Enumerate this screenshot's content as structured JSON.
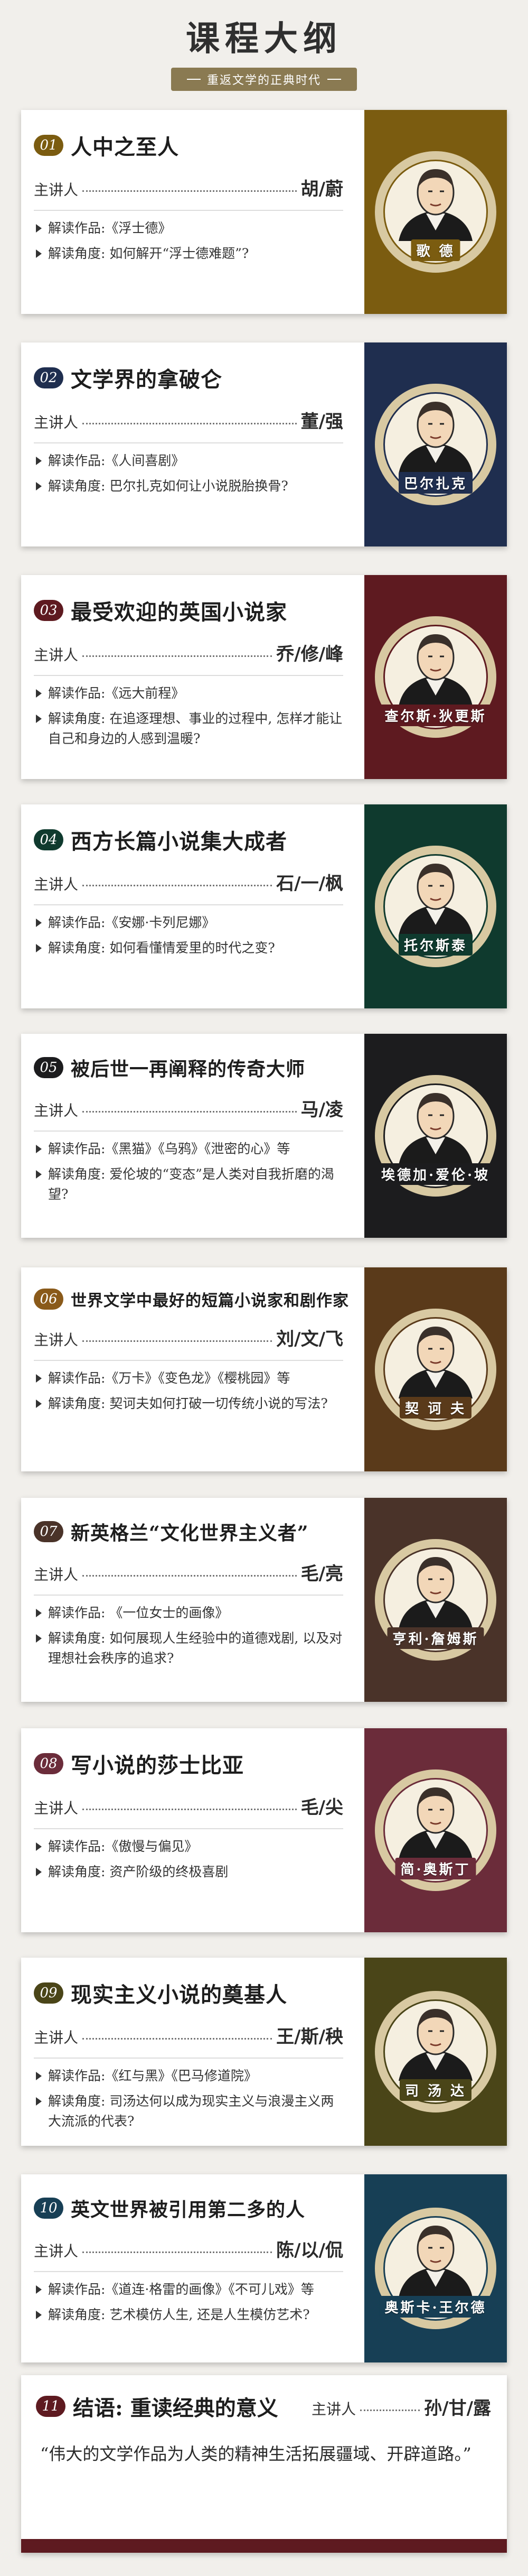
{
  "header": {
    "title": "课程大纲",
    "subtitle": "重返文学的正典时代"
  },
  "speaker_label": "主讲人",
  "cards": [
    {
      "num": "01",
      "title": "人中之至人",
      "speaker": "胡/蔚",
      "bullets": [
        "解读作品:《浮士德》",
        "解读角度: 如何解开“浮士德难题”?"
      ],
      "portrait": "歌 德",
      "color": "#7b5c10",
      "badge_color": "#7b5c10"
    },
    {
      "num": "02",
      "title": "文学界的拿破仑",
      "speaker": "董/强",
      "bullets": [
        "解读作品:《人间喜剧》",
        "解读角度: 巴尔扎克如何让小说脱胎换骨?"
      ],
      "portrait": "巴尔扎克",
      "color": "#1f2e4f",
      "badge_color": "#1f2e4f"
    },
    {
      "num": "03",
      "title": "最受欢迎的英国小说家",
      "speaker": "乔/修/峰",
      "bullets": [
        "解读作品:《远大前程》",
        "解读角度: 在追逐理想、事业的过程中, 怎样才能让自己和身边的人感到温暖?"
      ],
      "portrait": "查尔斯·狄更斯",
      "color": "#5e1a20",
      "badge_color": "#5e1a20"
    },
    {
      "num": "04",
      "title": "西方长篇小说集大成者",
      "speaker": "石/一/枫",
      "bullets": [
        "解读作品:《安娜·卡列尼娜》",
        "解读角度: 如何看懂情爱里的时代之变?"
      ],
      "portrait": "托尔斯泰",
      "color": "#0f3a2e",
      "badge_color": "#0f3a2e"
    },
    {
      "num": "05",
      "title": "被后世一再阐释的传奇大师",
      "speaker": "马/凌",
      "bullets": [
        "解读作品:《黑猫》《乌鸦》《泄密的心》等",
        "解读角度: 爱伦坡的“变态”是人类对自我折磨的渴望?"
      ],
      "portrait": "埃德加·爱伦·坡",
      "color": "#1c1c1e",
      "badge_color": "#1c1c1e"
    },
    {
      "num": "06",
      "title": "世界文学中最好的短篇小说家和剧作家",
      "speaker": "刘/文/飞",
      "bullets": [
        "解读作品:《万卡》《变色龙》《樱桃园》等",
        "解读角度: 契诃夫如何打破一切传统小说的写法?"
      ],
      "portrait": "契 诃 夫",
      "color": "#5a3a1a",
      "badge_color": "#8a5a1a"
    },
    {
      "num": "07",
      "title": "新英格兰“文化世界主义者”",
      "speaker": "毛/亮",
      "bullets": [
        "解读作品: 《一位女士的画像》",
        "解读角度: 如何展现人生经验中的道德戏剧, 以及对理想社会秩序的追求?"
      ],
      "portrait": "亨利·詹姆斯",
      "color": "#4a3329",
      "badge_color": "#4a3329"
    },
    {
      "num": "08",
      "title": "写小说的莎士比亚",
      "speaker": "毛/尖",
      "bullets": [
        "解读作品:《傲慢与偏见》",
        "解读角度: 资产阶级的终极喜剧"
      ],
      "portrait": "简·奥斯丁",
      "color": "#6b2c3a",
      "badge_color": "#6b2c3a"
    },
    {
      "num": "09",
      "title": "现实主义小说的奠基人",
      "speaker": "王/斯/秧",
      "bullets": [
        "解读作品:《红与黑》《巴马修道院》",
        "解读角度: 司汤达何以成为现实主义与浪漫主义两大流派的代表?"
      ],
      "portrait": "司 汤 达",
      "color": "#4a4518",
      "badge_color": "#4a4518"
    },
    {
      "num": "10",
      "title": "英文世界被引用第二多的人",
      "speaker": "陈/以/侃",
      "bullets": [
        "解读作品:《道连·格雷的画像》《不可儿戏》等",
        "解读角度: 艺术模仿人生, 还是人生模仿艺术?"
      ],
      "portrait": "奥斯卡·王尔德",
      "color": "#173f55",
      "badge_color": "#173f55"
    }
  ],
  "final": {
    "num": "11",
    "title": "结语: 重读经典的意义",
    "speaker": "孙/甘/露",
    "quote": "“伟大的文学作品为人类的精神生活拓展疆域、开辟道路。”",
    "color": "#5e1a20"
  }
}
